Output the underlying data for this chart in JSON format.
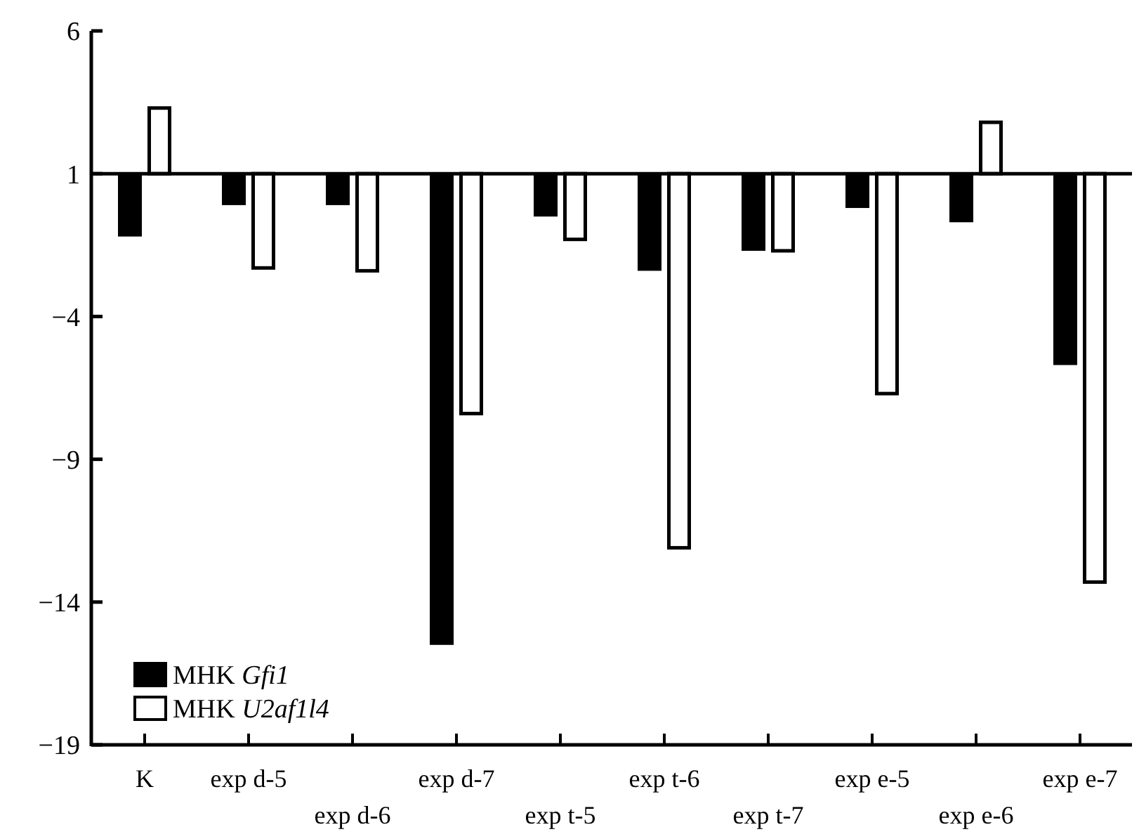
{
  "chart_data": {
    "type": "bar",
    "categories": [
      "K",
      "exp d-5",
      "exp d-6",
      "exp d-7",
      "exp t-5",
      "exp t-6",
      "exp t-7",
      "exp e-5",
      "exp e-6",
      "exp e-7"
    ],
    "series": [
      {
        "name": "MHK Gfi1",
        "color": "#000000",
        "base": [
          1,
          1,
          1,
          1,
          1,
          1,
          1,
          1,
          1,
          1
        ],
        "values": [
          -2.2,
          -1.1,
          -1.1,
          -16.5,
          -1.5,
          -3.4,
          -2.7,
          -1.2,
          -1.7,
          -6.7
        ]
      },
      {
        "name": "MHK U2af1l4",
        "color": "#ffffff",
        "base": [
          1,
          1,
          1,
          1,
          1,
          1,
          1,
          1,
          1,
          1
        ],
        "values": [
          2.3,
          -3.3,
          -3.4,
          -8.4,
          -2.3,
          -13.1,
          -2.7,
          -7.7,
          1.8,
          -14.3
        ]
      }
    ],
    "ylim": [
      -19,
      6
    ],
    "yticks": [
      6,
      1,
      {
        "value": -4,
        "label": "−4"
      },
      {
        "value": -9,
        "label": "−9"
      },
      {
        "value": -14,
        "label": "−14"
      },
      {
        "value": -19,
        "label": "−19"
      }
    ],
    "ref_lines": [
      {
        "axis": "y",
        "value": 1
      }
    ],
    "grid": false,
    "legend": "bottom left"
  }
}
